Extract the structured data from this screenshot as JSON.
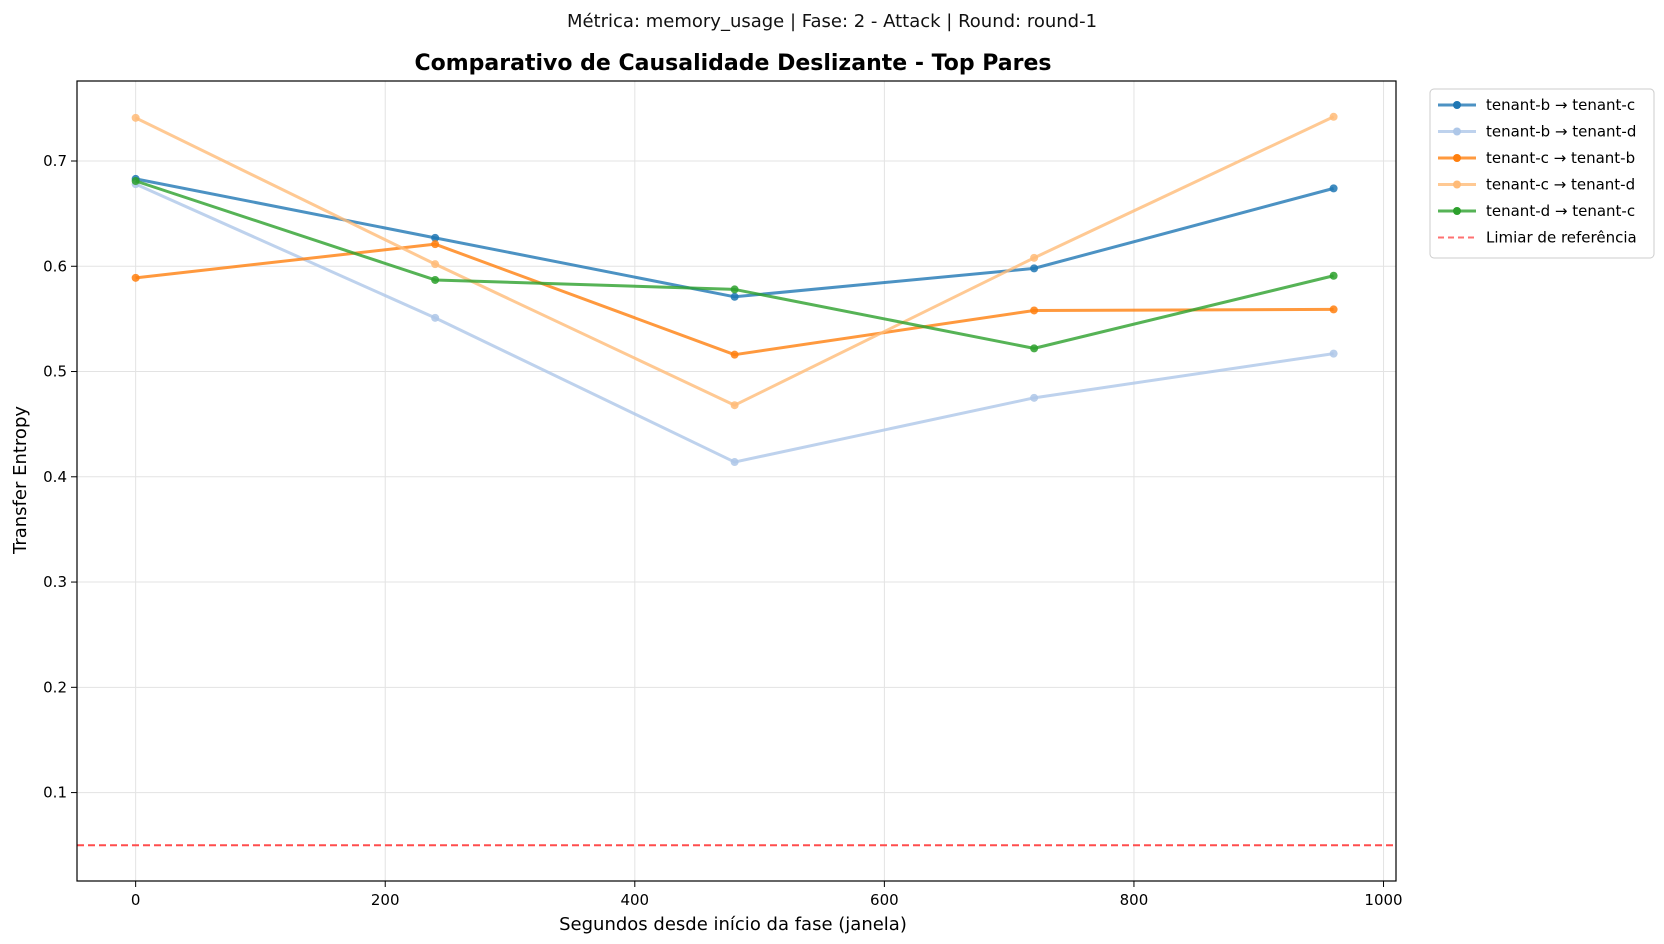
{
  "chart_data": {
    "type": "line",
    "suptitle": "Métrica: memory_usage | Fase: 2 - Attack | Round: round-1",
    "title": "Comparativo de Causalidade Deslizante - Top Pares",
    "xlabel": "Segundos desde início da fase (janela)",
    "ylabel": "Transfer Entropy",
    "xlim": [
      -47,
      1010
    ],
    "ylim": [
      0.016,
      0.776
    ],
    "xticks": [
      0,
      200,
      400,
      600,
      800,
      1000
    ],
    "yticks": [
      0.1,
      0.2,
      0.3,
      0.4,
      0.5,
      0.6,
      0.7
    ],
    "xtick_labels": [
      "0",
      "200",
      "400",
      "600",
      "800",
      "1000"
    ],
    "ytick_labels": [
      "0.1",
      "0.2",
      "0.3",
      "0.4",
      "0.5",
      "0.6",
      "0.7"
    ],
    "grid": true,
    "legend_position": "outside upper right",
    "x": [
      0,
      240,
      480,
      720,
      960
    ],
    "series": [
      {
        "name": "tenant-b → tenant-c",
        "color": "#1f77b4",
        "values": [
          0.683,
          0.627,
          0.571,
          0.598,
          0.674
        ]
      },
      {
        "name": "tenant-b → tenant-d",
        "color": "#aec7e8",
        "values": [
          0.678,
          0.551,
          0.414,
          0.475,
          0.517
        ]
      },
      {
        "name": "tenant-c → tenant-b",
        "color": "#ff7f0e",
        "values": [
          0.589,
          0.621,
          0.516,
          0.558,
          0.559
        ]
      },
      {
        "name": "tenant-c → tenant-d",
        "color": "#ffbb78",
        "values": [
          0.741,
          0.602,
          0.468,
          0.608,
          0.742
        ]
      },
      {
        "name": "tenant-d → tenant-c",
        "color": "#2ca02c",
        "values": [
          0.681,
          0.587,
          0.578,
          0.522,
          0.591
        ]
      }
    ],
    "reference_line": {
      "name": "Limiar de referência",
      "value": 0.05,
      "color": "#ff4d4d",
      "style": "dashed"
    }
  }
}
